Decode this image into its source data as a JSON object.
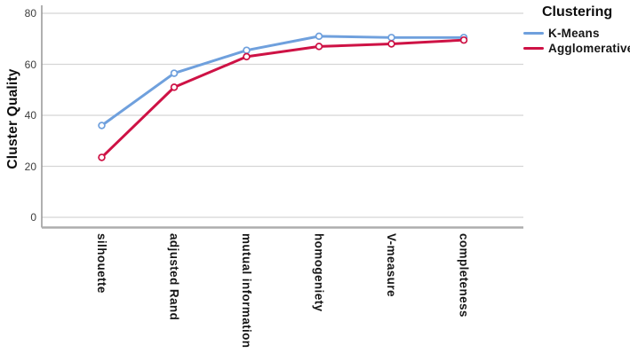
{
  "chart_data": {
    "type": "line",
    "title": "",
    "xlabel": "",
    "ylabel": "Cluster Quality",
    "categories": [
      "silhouette",
      "adjusted Rand",
      "mutual information",
      "homogeniety",
      "V-measure",
      "completeness"
    ],
    "series": [
      {
        "name": "K-Means",
        "color": "#6FA0DD",
        "values": [
          36,
          56.5,
          65.5,
          71,
          70.5,
          70.5
        ]
      },
      {
        "name": "Agglomerative",
        "color": "#CE1245",
        "values": [
          23.5,
          51,
          63,
          67,
          68,
          69.5
        ]
      }
    ],
    "ylim": [
      0,
      80
    ],
    "yticks": [
      0,
      20,
      40,
      60,
      80
    ],
    "grid": true,
    "marker": "circle-open",
    "legend_title": "Clustering",
    "legend_position": "top-right"
  },
  "palette": {
    "gridline": "#D5D5D5",
    "axis_line": "#8F8F8F",
    "frame_line": "#ADADAD",
    "marker_fill": "#FFFFFF"
  }
}
